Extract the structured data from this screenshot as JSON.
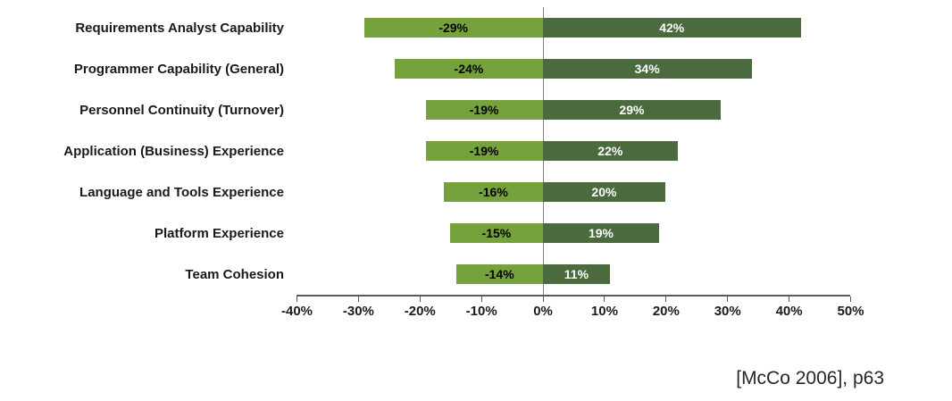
{
  "chart_data": {
    "type": "bar",
    "orientation": "horizontal",
    "title": "",
    "categories": [
      "Requirements Analyst Capability",
      "Programmer Capability (General)",
      "Personnel Continuity (Turnover)",
      "Application (Business) Experience",
      "Language and Tools Experience",
      "Platform Experience",
      "Team Cohesion"
    ],
    "series": [
      {
        "name": "negative-impact",
        "values": [
          -29,
          -24,
          -19,
          -19,
          -16,
          -15,
          -14
        ],
        "labels": [
          "-29%",
          "-24%",
          "-19%",
          "-19%",
          "-16%",
          "-15%",
          "-14%"
        ],
        "color": "#76a23e"
      },
      {
        "name": "positive-impact",
        "values": [
          42,
          34,
          29,
          22,
          20,
          19,
          11
        ],
        "labels": [
          "42%",
          "34%",
          "29%",
          "22%",
          "20%",
          "19%",
          "11%"
        ],
        "color": "#4b6a3d"
      }
    ],
    "xlim": [
      -40,
      50
    ],
    "xticks": [
      -40,
      -30,
      -20,
      -10,
      0,
      10,
      20,
      30,
      40,
      50
    ],
    "xtick_labels": [
      "-40%",
      "-30%",
      "-20%",
      "-10%",
      "0%",
      "10%",
      "20%",
      "30%",
      "40%",
      "50%"
    ],
    "grid": false,
    "legend": false
  },
  "citation": "[McCo 2006], p63",
  "colors": {
    "negative_bar": "#76a23e",
    "positive_bar": "#4b6a3d",
    "axis_line": "#595959",
    "zero_line": "#808080",
    "negative_label_text": "#000000",
    "positive_label_text": "#ffffff"
  }
}
